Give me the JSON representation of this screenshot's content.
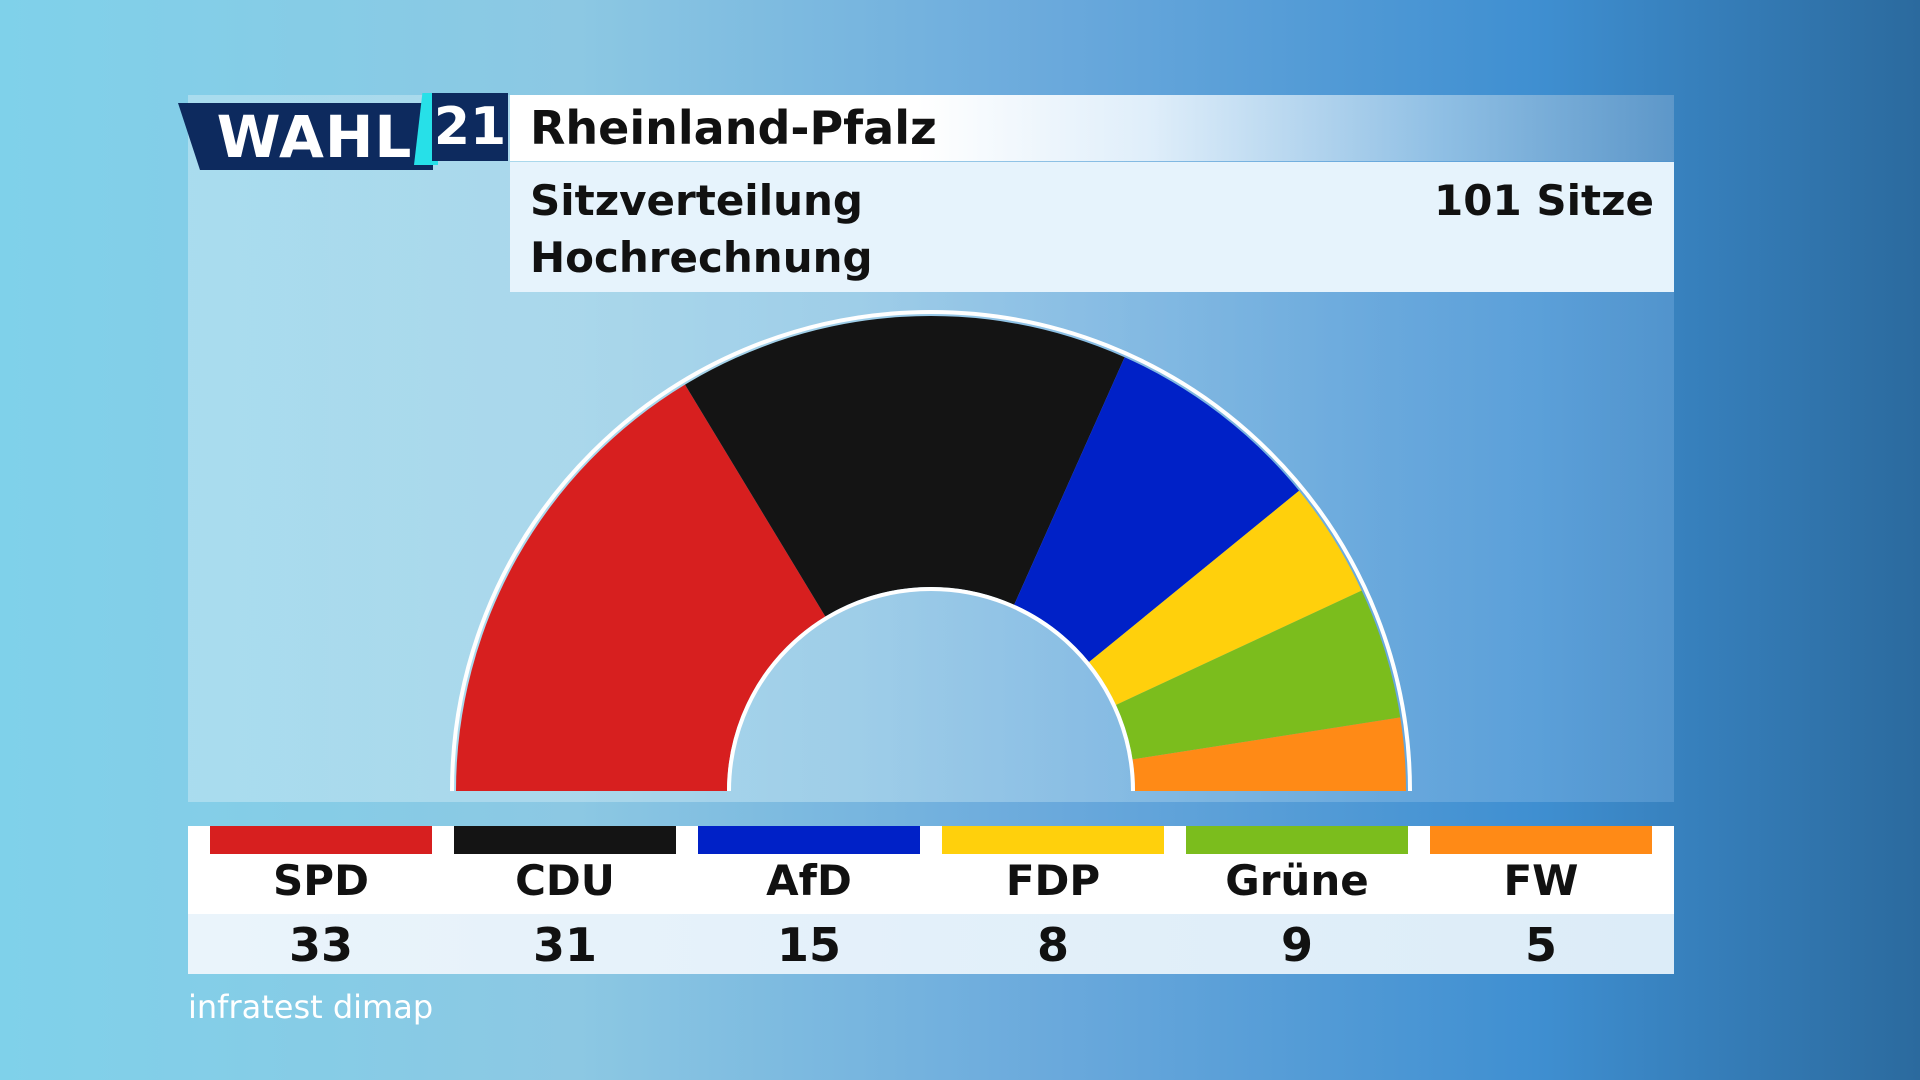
{
  "logo": {
    "text": "WAHL",
    "number": "21"
  },
  "header": {
    "title": "Rheinland-Pfalz",
    "subtitle_line1": "Sitzverteilung",
    "subtitle_line2": "Hochrechnung",
    "total_seats": "101 Sitze"
  },
  "chart_data": {
    "type": "pie",
    "variant": "semicircle",
    "total": 101,
    "series": [
      {
        "name": "SPD",
        "value": 33,
        "color": "#d71f1f"
      },
      {
        "name": "CDU",
        "value": 31,
        "color": "#141414"
      },
      {
        "name": "AfD",
        "value": 15,
        "color": "#0021c7"
      },
      {
        "name": "FDP",
        "value": 8,
        "color": "#ffd00c"
      },
      {
        "name": "Grüne",
        "value": 9,
        "color": "#7bbd1d"
      },
      {
        "name": "FW",
        "value": 5,
        "color": "#ff8a16"
      }
    ]
  },
  "legend": [
    {
      "name": "SPD",
      "value": "33",
      "color": "#d71f1f"
    },
    {
      "name": "CDU",
      "value": "31",
      "color": "#141414"
    },
    {
      "name": "AfD",
      "value": "15",
      "color": "#0021c7"
    },
    {
      "name": "FDP",
      "value": "8",
      "color": "#ffd00c"
    },
    {
      "name": "Grüne",
      "value": "9",
      "color": "#7bbd1d"
    },
    {
      "name": "FW",
      "value": "5",
      "color": "#ff8a16"
    }
  ],
  "source": "infratest dimap"
}
